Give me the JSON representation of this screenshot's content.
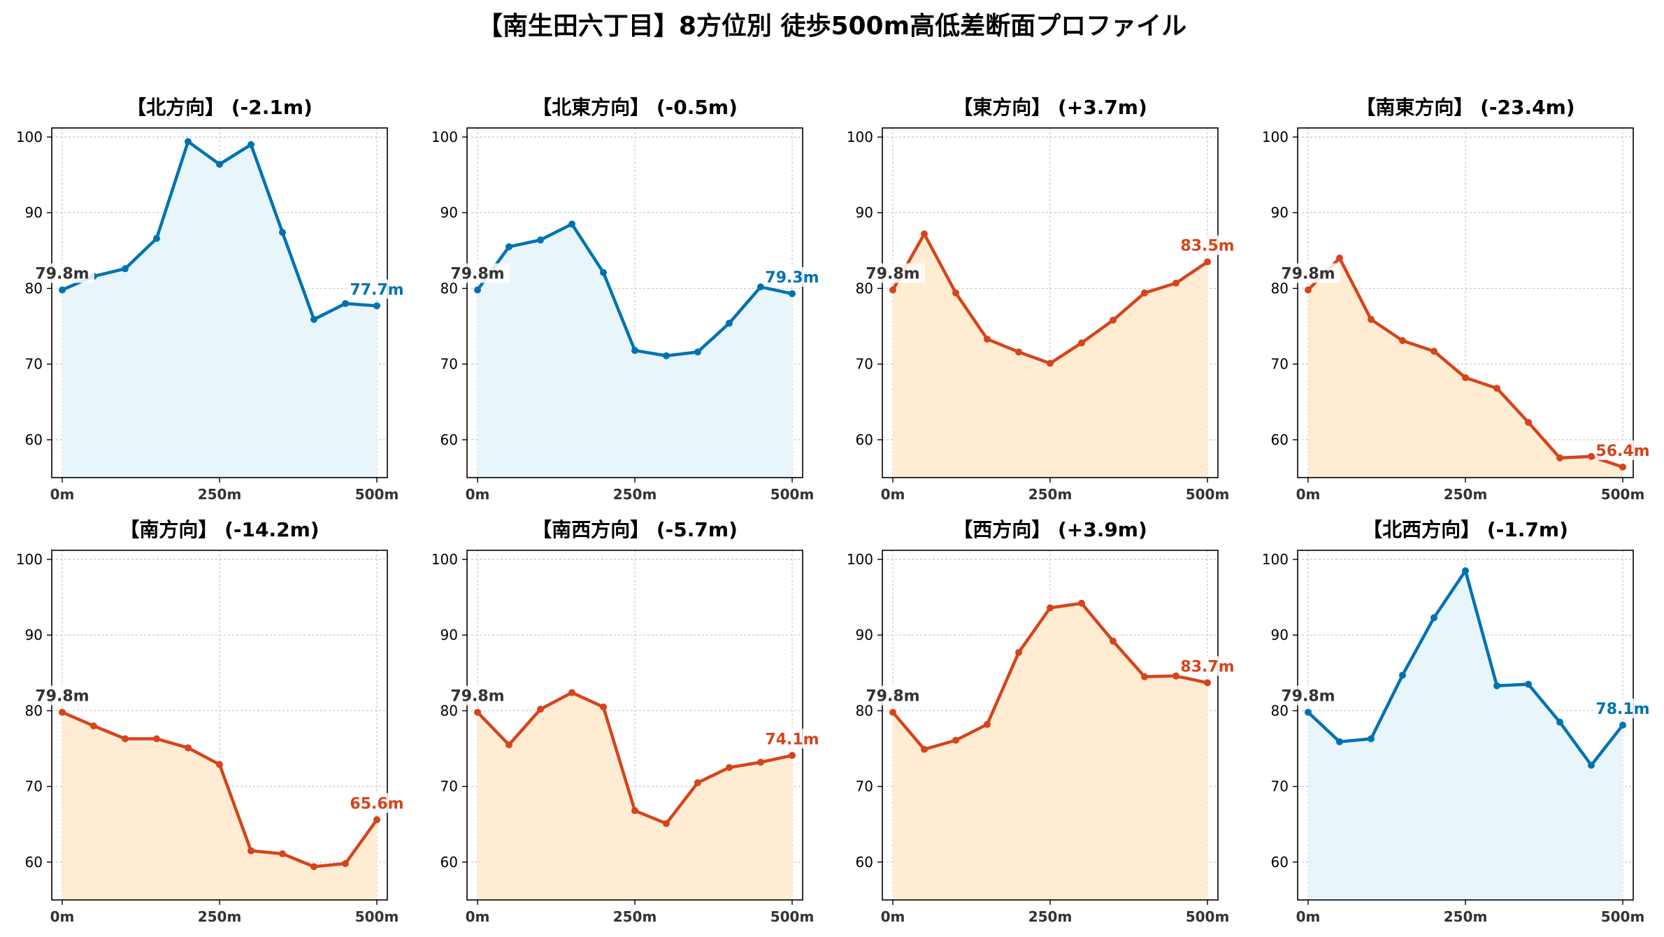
{
  "title": "【南生田六丁目】8方位別 徒歩500m高低差断面プロファイル",
  "colors": {
    "up": "#0072b2",
    "up_fill": "#e8f6fc",
    "down": "#d5441c",
    "down_fill": "#ffecd2",
    "start_label": "#333333"
  },
  "chart_data": [
    {
      "type": "line",
      "title": "【北方向】 (-2.1m)",
      "trend": "up",
      "x": [
        0,
        50,
        100,
        150,
        200,
        250,
        300,
        350,
        400,
        450,
        500
      ],
      "values": [
        79.8,
        81.6,
        82.6,
        86.6,
        99.4,
        96.4,
        99.0,
        87.4,
        75.9,
        78.0,
        77.7
      ],
      "start_label": "79.8m",
      "end_label": "77.7m"
    },
    {
      "type": "line",
      "title": "【北東方向】 (-0.5m)",
      "trend": "up",
      "x": [
        0,
        50,
        100,
        150,
        200,
        250,
        300,
        350,
        400,
        450,
        500
      ],
      "values": [
        79.8,
        85.5,
        86.4,
        88.5,
        82.1,
        71.8,
        71.1,
        71.6,
        75.4,
        80.2,
        79.3
      ],
      "start_label": "79.8m",
      "end_label": "79.3m"
    },
    {
      "type": "line",
      "title": "【東方向】 (+3.7m)",
      "trend": "down",
      "x": [
        0,
        50,
        100,
        150,
        200,
        250,
        300,
        350,
        400,
        450,
        500
      ],
      "values": [
        79.8,
        87.2,
        79.4,
        73.3,
        71.6,
        70.1,
        72.8,
        75.8,
        79.4,
        80.7,
        83.5
      ],
      "start_label": "79.8m",
      "end_label": "83.5m"
    },
    {
      "type": "line",
      "title": "【南東方向】 (-23.4m)",
      "trend": "down",
      "x": [
        0,
        50,
        100,
        150,
        200,
        250,
        300,
        350,
        400,
        450,
        500
      ],
      "values": [
        79.8,
        84.0,
        75.9,
        73.1,
        71.7,
        68.2,
        66.8,
        62.3,
        57.6,
        57.8,
        56.4
      ],
      "start_label": "79.8m",
      "end_label": "56.4m"
    },
    {
      "type": "line",
      "title": "【南方向】 (-14.2m)",
      "trend": "down",
      "x": [
        0,
        50,
        100,
        150,
        200,
        250,
        300,
        350,
        400,
        450,
        500
      ],
      "values": [
        79.8,
        78.0,
        76.3,
        76.3,
        75.1,
        72.9,
        61.5,
        61.1,
        59.4,
        59.8,
        65.6
      ],
      "start_label": "79.8m",
      "end_label": "65.6m"
    },
    {
      "type": "line",
      "title": "【南西方向】 (-5.7m)",
      "trend": "down",
      "x": [
        0,
        50,
        100,
        150,
        200,
        250,
        300,
        350,
        400,
        450,
        500
      ],
      "values": [
        79.8,
        75.5,
        80.2,
        82.4,
        80.5,
        66.8,
        65.1,
        70.5,
        72.5,
        73.2,
        74.1
      ],
      "start_label": "79.8m",
      "end_label": "74.1m"
    },
    {
      "type": "line",
      "title": "【西方向】 (+3.9m)",
      "trend": "down",
      "x": [
        0,
        50,
        100,
        150,
        200,
        250,
        300,
        350,
        400,
        450,
        500
      ],
      "values": [
        79.8,
        74.9,
        76.1,
        78.2,
        87.7,
        93.6,
        94.2,
        89.2,
        84.5,
        84.6,
        83.7
      ],
      "start_label": "79.8m",
      "end_label": "83.7m"
    },
    {
      "type": "line",
      "title": "【北西方向】 (-1.7m)",
      "trend": "up",
      "x": [
        0,
        50,
        100,
        150,
        200,
        250,
        300,
        350,
        400,
        450,
        500
      ],
      "values": [
        79.8,
        75.9,
        76.3,
        84.7,
        92.3,
        98.5,
        83.3,
        83.5,
        78.5,
        72.8,
        78.1
      ],
      "start_label": "79.8m",
      "end_label": "78.1m"
    }
  ],
  "axes": {
    "xlim": [
      0,
      500
    ],
    "ylim": [
      55,
      101.2
    ],
    "xticks": [
      0,
      250,
      500
    ],
    "xtick_labels": [
      "0m",
      "250m",
      "500m"
    ],
    "yticks": [
      60,
      70,
      80,
      90,
      100
    ],
    "ytick_labels": [
      "60",
      "70",
      "80",
      "90",
      "100"
    ],
    "grid": true
  }
}
